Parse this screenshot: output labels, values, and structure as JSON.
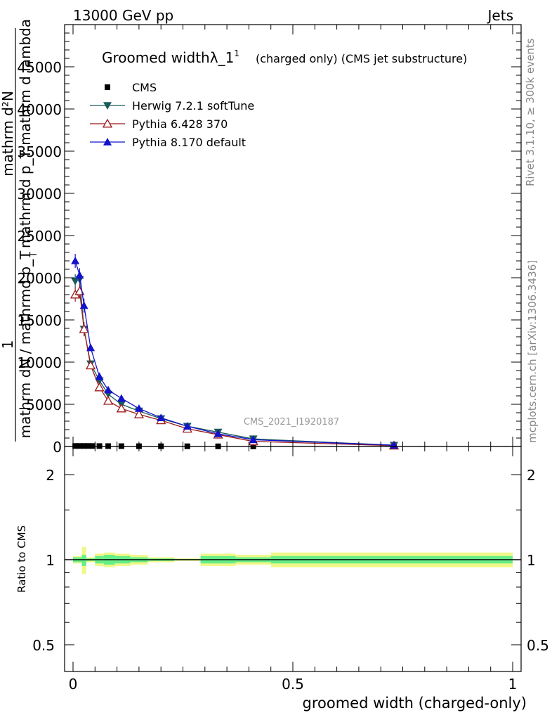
{
  "header": {
    "left": "13000 GeV pp",
    "right": "Jets"
  },
  "side_labels": {
    "rivet": "Rivet 3.1.10, ≥ 300k events",
    "mcplots": "mcplots.cern.ch [arXiv:1306.3436]"
  },
  "watermark": "CMS_2021_I1920187",
  "chart_data": [
    {
      "type": "line",
      "panel": "main",
      "title": "Groomed width",
      "title_symbol": "λ_1",
      "title_superscript": "1",
      "title_suffix": "(charged only) (CMS jet substructure)",
      "ylabel_numerator": "1",
      "ylabel_denominator": "mathrm dN / mathrmd p_T",
      "ylabel_right_numerator": "mathrm d²N",
      "ylabel_right_denominator": "mathrm d p_T mathrm d lambda",
      "ylabel_sub": "T",
      "xlim": [
        0,
        1
      ],
      "ylim": [
        0,
        50000
      ],
      "yticks": [
        0,
        5000,
        10000,
        15000,
        20000,
        25000,
        30000,
        35000,
        40000,
        45000
      ],
      "ytick_labels": [
        "0",
        "5000",
        "10000",
        "15000",
        "20000",
        "25000",
        "30000",
        "35000",
        "40000",
        "45000"
      ],
      "legend_position": "top-left",
      "series": [
        {
          "name": "CMS",
          "color": "#000000",
          "marker": "square",
          "x": [
            0.005,
            0.015,
            0.025,
            0.035,
            0.045,
            0.06,
            0.08,
            0.11,
            0.15,
            0.2,
            0.26,
            0.33,
            0.41,
            0.73
          ],
          "values": [
            60,
            60,
            60,
            60,
            55,
            50,
            45,
            40,
            35,
            30,
            25,
            20,
            15,
            5
          ]
        },
        {
          "name": "Herwig 7.2.1 softTune",
          "color": "#1a5b5b",
          "marker": "triangle-down",
          "x": [
            0.005,
            0.015,
            0.025,
            0.04,
            0.06,
            0.08,
            0.11,
            0.15,
            0.2,
            0.26,
            0.33,
            0.41,
            0.73
          ],
          "values": [
            19600,
            19800,
            13900,
            9800,
            7800,
            6200,
            5000,
            4200,
            3300,
            2400,
            1700,
            900,
            150
          ]
        },
        {
          "name": "Pythia 6.428 370",
          "color": "#9b1b1b",
          "marker": "triangle-up-open",
          "x": [
            0.005,
            0.015,
            0.025,
            0.04,
            0.06,
            0.08,
            0.11,
            0.15,
            0.2,
            0.26,
            0.33,
            0.41,
            0.73
          ],
          "values": [
            18000,
            18400,
            13900,
            9600,
            7000,
            5400,
            4500,
            3800,
            3100,
            2100,
            1400,
            600,
            100
          ]
        },
        {
          "name": "Pythia 8.170 default",
          "color": "#1212cc",
          "marker": "triangle-up",
          "x": [
            0.005,
            0.015,
            0.025,
            0.04,
            0.06,
            0.08,
            0.11,
            0.15,
            0.2,
            0.26,
            0.33,
            0.41,
            0.73
          ],
          "values": [
            22000,
            20300,
            16700,
            11700,
            8300,
            6700,
            5700,
            4500,
            3400,
            2400,
            1500,
            800,
            150
          ]
        }
      ]
    },
    {
      "type": "area",
      "panel": "ratio",
      "ylabel": "Ratio to CMS",
      "xlabel": "groomed width (charged-only)",
      "xlim": [
        0,
        1
      ],
      "ylim": [
        0.4,
        2.4
      ],
      "yticks": [
        0.5,
        1,
        2
      ],
      "ytick_labels": [
        "0.5",
        "1",
        "2"
      ],
      "xticks": [
        0,
        0.5,
        1
      ],
      "xtick_labels": [
        "0",
        "0.5",
        "1"
      ],
      "bins": [
        {
          "lo": 0.0,
          "hi": 0.01,
          "stat_lo": 0.98,
          "stat_hi": 1.02,
          "tot_lo": 0.97,
          "tot_hi": 1.03
        },
        {
          "lo": 0.01,
          "hi": 0.02,
          "stat_lo": 0.98,
          "stat_hi": 1.02,
          "tot_lo": 0.97,
          "tot_hi": 1.03
        },
        {
          "lo": 0.02,
          "hi": 0.03,
          "stat_lo": 0.95,
          "stat_hi": 1.04,
          "tot_lo": 0.89,
          "tot_hi": 1.11
        },
        {
          "lo": 0.03,
          "hi": 0.05,
          "stat_lo": 0.99,
          "stat_hi": 1.01,
          "tot_lo": 0.98,
          "tot_hi": 1.02
        },
        {
          "lo": 0.05,
          "hi": 0.07,
          "stat_lo": 0.97,
          "stat_hi": 1.03,
          "tot_lo": 0.95,
          "tot_hi": 1.05
        },
        {
          "lo": 0.07,
          "hi": 0.095,
          "stat_lo": 0.96,
          "stat_hi": 1.04,
          "tot_lo": 0.94,
          "tot_hi": 1.06
        },
        {
          "lo": 0.095,
          "hi": 0.13,
          "stat_lo": 0.97,
          "stat_hi": 1.03,
          "tot_lo": 0.95,
          "tot_hi": 1.05
        },
        {
          "lo": 0.13,
          "hi": 0.17,
          "stat_lo": 0.98,
          "stat_hi": 1.02,
          "tot_lo": 0.96,
          "tot_hi": 1.04
        },
        {
          "lo": 0.17,
          "hi": 0.23,
          "stat_lo": 0.99,
          "stat_hi": 1.01,
          "tot_lo": 0.98,
          "tot_hi": 1.02
        },
        {
          "lo": 0.23,
          "hi": 0.29,
          "stat_lo": 0.995,
          "stat_hi": 1.005,
          "tot_lo": 0.99,
          "tot_hi": 1.01
        },
        {
          "lo": 0.29,
          "hi": 0.37,
          "stat_lo": 0.97,
          "stat_hi": 1.03,
          "tot_lo": 0.95,
          "tot_hi": 1.05
        },
        {
          "lo": 0.37,
          "hi": 0.45,
          "stat_lo": 0.98,
          "stat_hi": 1.02,
          "tot_lo": 0.96,
          "tot_hi": 1.04
        },
        {
          "lo": 0.45,
          "hi": 1.0,
          "stat_lo": 0.97,
          "stat_hi": 1.03,
          "tot_lo": 0.94,
          "tot_hi": 1.06
        }
      ],
      "colors": {
        "stat": "#66ee88",
        "total": "#f0f888",
        "unity": "#000000"
      }
    }
  ]
}
